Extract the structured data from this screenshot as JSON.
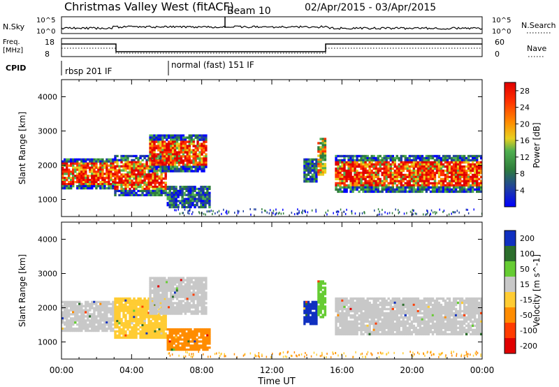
{
  "header": {
    "title": "Christmas Valley West (fitACF)",
    "beam": "Beam 10",
    "dates": "02/Apr/2015 - 03/Apr/2015"
  },
  "top_panels": {
    "nsky": {
      "label": "N.Sky",
      "ticks_left": [
        "10^5",
        "10^0"
      ],
      "ticks_right": [
        "10^5",
        "10^0"
      ],
      "right_label": "N.Search"
    },
    "freq": {
      "label_line1": "Freq.",
      "label_line2": "[MHz]",
      "ticks_left": [
        "18",
        "8"
      ],
      "ticks_right": [
        "60",
        "0"
      ],
      "right_label": "Nave"
    },
    "cpid": {
      "label": "CPID",
      "segments": [
        "rbsp 201 IF",
        "normal (fast) 151 IF"
      ]
    }
  },
  "chart_data": [
    {
      "type": "heatmap",
      "name": "power-panel",
      "xlabel": "Time UT",
      "ylabel": "Slant Range [km]",
      "xlim": [
        0,
        24
      ],
      "ylim": [
        500,
        4500
      ],
      "x_ticks": [
        "00:00",
        "04:00",
        "08:00",
        "12:00",
        "16:00",
        "20:00",
        "00:00"
      ],
      "y_ticks": [
        1000,
        2000,
        3000,
        4000
      ],
      "colorbar": {
        "label": "Power [dB]",
        "ticks": [
          "4",
          "8",
          "12",
          "16",
          "20",
          "24",
          "28"
        ],
        "range": [
          0,
          30
        ]
      },
      "regions": [
        {
          "t0": 0.0,
          "t1": 3.0,
          "r0": 1300,
          "r1": 2200,
          "level": "high"
        },
        {
          "t0": 3.0,
          "t1": 6.0,
          "r0": 1100,
          "r1": 2300,
          "level": "high"
        },
        {
          "t0": 5.0,
          "t1": 8.3,
          "r0": 1800,
          "r1": 2900,
          "level": "high"
        },
        {
          "t0": 6.0,
          "t1": 8.5,
          "r0": 750,
          "r1": 1400,
          "level": "low"
        },
        {
          "t0": 13.8,
          "t1": 14.6,
          "r0": 1500,
          "r1": 2200,
          "level": "low"
        },
        {
          "t0": 14.6,
          "t1": 15.1,
          "r0": 1700,
          "r1": 2800,
          "level": "mid"
        },
        {
          "t0": 15.6,
          "t1": 24.0,
          "r0": 1200,
          "r1": 2300,
          "level": "high"
        }
      ]
    },
    {
      "type": "heatmap",
      "name": "velocity-panel",
      "xlabel": "Time UT",
      "ylabel": "Slant Range [km]",
      "xlim": [
        0,
        24
      ],
      "ylim": [
        500,
        4500
      ],
      "x_ticks": [
        "00:00",
        "04:00",
        "08:00",
        "12:00",
        "16:00",
        "20:00",
        "00:00"
      ],
      "y_ticks": [
        1000,
        2000,
        3000,
        4000
      ],
      "colorbar": {
        "label": "Velocity [m s^-1]",
        "ticks": [
          "200",
          "100",
          "50",
          "15",
          "-15",
          "-50",
          "-100",
          "-200"
        ],
        "range": [
          -250,
          250
        ]
      },
      "regions": [
        {
          "t0": 0.0,
          "t1": 3.0,
          "r0": 1300,
          "r1": 2200,
          "v": 0
        },
        {
          "t0": 3.0,
          "t1": 6.0,
          "r0": 1100,
          "r1": 2300,
          "v": -30
        },
        {
          "t0": 5.0,
          "t1": 8.3,
          "r0": 1800,
          "r1": 2900,
          "v": 0
        },
        {
          "t0": 6.0,
          "t1": 8.5,
          "r0": 750,
          "r1": 1400,
          "v": -70
        },
        {
          "t0": 13.8,
          "t1": 14.6,
          "r0": 1500,
          "r1": 2200,
          "v": 200
        },
        {
          "t0": 14.6,
          "t1": 15.1,
          "r0": 1700,
          "r1": 2800,
          "v": 40
        },
        {
          "t0": 15.6,
          "t1": 24.0,
          "r0": 1200,
          "r1": 2300,
          "v": 0
        }
      ]
    }
  ],
  "colors": {
    "power_scale": [
      "#0000ff",
      "#2040a0",
      "#2e7d3c",
      "#50b050",
      "#e8d020",
      "#ff8c00",
      "#ff3000",
      "#e00000"
    ],
    "velocity_scale": [
      "#1030c0",
      "#2c6e2c",
      "#66cc33",
      "#c8c8c8",
      "#ffcc33",
      "#ff8c00",
      "#ff3c00",
      "#e00000"
    ]
  }
}
